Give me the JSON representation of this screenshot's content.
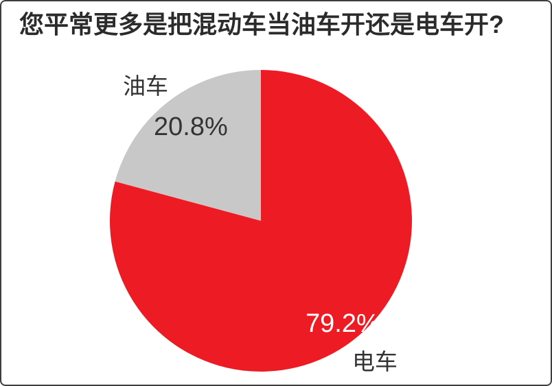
{
  "title": "您平常更多是把混动车当油车开还是电车开?",
  "chart_data": {
    "type": "pie",
    "title": "您平常更多是把混动车当油车开还是电车开?",
    "start_angle": "top",
    "direction": "clockwise",
    "legend_position": "none",
    "grid": false,
    "slices": [
      {
        "label": "电车",
        "value_pct": 79.2,
        "value_display": "79.2%",
        "color": "#ED1C24",
        "label_color": "#333333",
        "value_label_color": "#FFFFFF"
      },
      {
        "label": "油车",
        "value_pct": 20.8,
        "value_display": "20.8%",
        "color": "#C8C8C8",
        "label_color": "#333333",
        "value_label_color": "#333333"
      }
    ],
    "colors": {
      "background": "#FFFFFF",
      "frame_border": "#3D3D3D",
      "title_text": "#2B2B2B"
    }
  }
}
